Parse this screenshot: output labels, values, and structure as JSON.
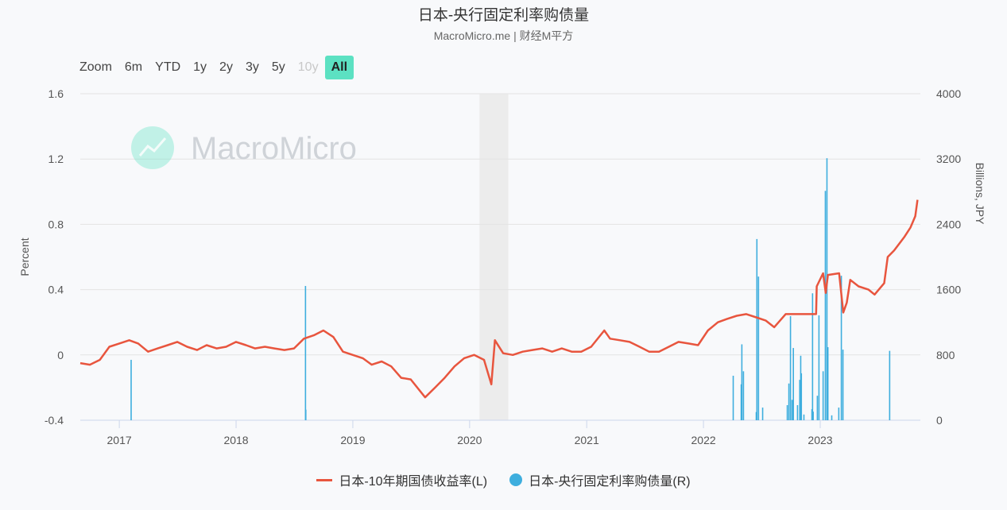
{
  "header": {
    "title": "日本-央行固定利率购债量",
    "subtitle": "MacroMicro.me | 财经M平方"
  },
  "range_selector": {
    "label": "Zoom",
    "buttons": [
      {
        "label": "6m",
        "state": "normal"
      },
      {
        "label": "YTD",
        "state": "normal"
      },
      {
        "label": "1y",
        "state": "normal"
      },
      {
        "label": "2y",
        "state": "normal"
      },
      {
        "label": "3y",
        "state": "normal"
      },
      {
        "label": "5y",
        "state": "normal"
      },
      {
        "label": "10y",
        "state": "disabled"
      },
      {
        "label": "All",
        "state": "active"
      }
    ]
  },
  "watermark": "MacroMicro",
  "colors": {
    "line": "#e8553e",
    "bars": "#3eaede",
    "accent": "#5ce1c2",
    "shade": "#ececec"
  },
  "chart_data": {
    "type": "line+bar",
    "title": "日本-央行固定利率购债量",
    "ylabel_left": "Percent",
    "ylabel_right": "Billions, JPY",
    "ylim_left": [
      -0.4,
      1.6
    ],
    "ylim_right": [
      0,
      4000
    ],
    "yticks_left": [
      "-0.4",
      "0",
      "0.4",
      "0.8",
      "1.2",
      "1.6"
    ],
    "yticks_right": [
      "0",
      "800",
      "1600",
      "2400",
      "3200",
      "4000"
    ],
    "xticks": [
      "2017",
      "2018",
      "2019",
      "2020",
      "2021",
      "2022",
      "2023"
    ],
    "xlim": [
      "2016-09-01",
      "2023-11-10"
    ],
    "grid": true,
    "legend_placement": "bottom",
    "shaded_period": [
      "2020-02-01",
      "2020-05-01"
    ],
    "series": [
      {
        "name": "日本-10年期国债收益率(L)",
        "axis": "left",
        "type": "line",
        "points": [
          [
            "2016-09-01",
            -0.05
          ],
          [
            "2016-10-01",
            -0.06
          ],
          [
            "2016-11-01",
            -0.03
          ],
          [
            "2016-12-01",
            0.05
          ],
          [
            "2017-01-01",
            0.07
          ],
          [
            "2017-02-01",
            0.09
          ],
          [
            "2017-03-01",
            0.07
          ],
          [
            "2017-04-01",
            0.02
          ],
          [
            "2017-05-01",
            0.04
          ],
          [
            "2017-06-01",
            0.06
          ],
          [
            "2017-07-01",
            0.08
          ],
          [
            "2017-08-01",
            0.05
          ],
          [
            "2017-09-01",
            0.03
          ],
          [
            "2017-10-01",
            0.06
          ],
          [
            "2017-11-01",
            0.04
          ],
          [
            "2017-12-01",
            0.05
          ],
          [
            "2018-01-01",
            0.08
          ],
          [
            "2018-02-01",
            0.06
          ],
          [
            "2018-03-01",
            0.04
          ],
          [
            "2018-04-01",
            0.05
          ],
          [
            "2018-05-01",
            0.04
          ],
          [
            "2018-06-01",
            0.03
          ],
          [
            "2018-07-01",
            0.04
          ],
          [
            "2018-08-01",
            0.1
          ],
          [
            "2018-09-01",
            0.12
          ],
          [
            "2018-10-01",
            0.15
          ],
          [
            "2018-11-01",
            0.11
          ],
          [
            "2018-12-01",
            0.02
          ],
          [
            "2019-01-01",
            0.0
          ],
          [
            "2019-02-01",
            -0.02
          ],
          [
            "2019-03-01",
            -0.06
          ],
          [
            "2019-04-01",
            -0.04
          ],
          [
            "2019-05-01",
            -0.07
          ],
          [
            "2019-06-01",
            -0.14
          ],
          [
            "2019-07-01",
            -0.15
          ],
          [
            "2019-08-15",
            -0.26
          ],
          [
            "2019-09-15",
            -0.2
          ],
          [
            "2019-10-15",
            -0.14
          ],
          [
            "2019-11-15",
            -0.07
          ],
          [
            "2019-12-15",
            -0.02
          ],
          [
            "2020-01-15",
            0.0
          ],
          [
            "2020-02-15",
            -0.03
          ],
          [
            "2020-03-09",
            -0.18
          ],
          [
            "2020-03-20",
            0.09
          ],
          [
            "2020-04-15",
            0.01
          ],
          [
            "2020-05-15",
            0.0
          ],
          [
            "2020-06-15",
            0.02
          ],
          [
            "2020-07-15",
            0.03
          ],
          [
            "2020-08-15",
            0.04
          ],
          [
            "2020-09-15",
            0.02
          ],
          [
            "2020-10-15",
            0.04
          ],
          [
            "2020-11-15",
            0.02
          ],
          [
            "2020-12-15",
            0.02
          ],
          [
            "2021-01-15",
            0.05
          ],
          [
            "2021-02-25",
            0.15
          ],
          [
            "2021-03-15",
            0.1
          ],
          [
            "2021-04-15",
            0.09
          ],
          [
            "2021-05-15",
            0.08
          ],
          [
            "2021-06-15",
            0.05
          ],
          [
            "2021-07-15",
            0.02
          ],
          [
            "2021-08-15",
            0.02
          ],
          [
            "2021-09-15",
            0.05
          ],
          [
            "2021-10-15",
            0.08
          ],
          [
            "2021-11-15",
            0.07
          ],
          [
            "2021-12-15",
            0.06
          ],
          [
            "2022-01-15",
            0.15
          ],
          [
            "2022-02-15",
            0.2
          ],
          [
            "2022-03-15",
            0.22
          ],
          [
            "2022-04-15",
            0.24
          ],
          [
            "2022-05-15",
            0.25
          ],
          [
            "2022-06-15",
            0.23
          ],
          [
            "2022-07-15",
            0.21
          ],
          [
            "2022-08-10",
            0.17
          ],
          [
            "2022-09-15",
            0.25
          ],
          [
            "2022-10-15",
            0.25
          ],
          [
            "2022-11-15",
            0.25
          ],
          [
            "2022-12-19",
            0.25
          ],
          [
            "2022-12-21",
            0.42
          ],
          [
            "2023-01-10",
            0.5
          ],
          [
            "2023-01-18",
            0.38
          ],
          [
            "2023-01-25",
            0.49
          ],
          [
            "2023-03-01",
            0.5
          ],
          [
            "2023-03-14",
            0.26
          ],
          [
            "2023-03-25",
            0.32
          ],
          [
            "2023-04-05",
            0.46
          ],
          [
            "2023-05-01",
            0.42
          ],
          [
            "2023-06-01",
            0.4
          ],
          [
            "2023-06-20",
            0.37
          ],
          [
            "2023-07-20",
            0.44
          ],
          [
            "2023-07-31",
            0.6
          ],
          [
            "2023-08-20",
            0.64
          ],
          [
            "2023-09-20",
            0.72
          ],
          [
            "2023-10-10",
            0.78
          ],
          [
            "2023-10-25",
            0.85
          ],
          [
            "2023-11-01",
            0.95
          ]
        ]
      },
      {
        "name": "日本-央行固定利率购债量(R)",
        "axis": "right",
        "type": "bar",
        "points": [
          [
            "2017-02-07",
            740
          ],
          [
            "2018-08-06",
            1645
          ],
          [
            "2018-08-07",
            130
          ],
          [
            "2022-04-04",
            545
          ],
          [
            "2022-04-29",
            440
          ],
          [
            "2022-05-01",
            930
          ],
          [
            "2022-05-06",
            600
          ],
          [
            "2022-06-15",
            100
          ],
          [
            "2022-06-17",
            2220
          ],
          [
            "2022-06-22",
            1760
          ],
          [
            "2022-07-05",
            155
          ],
          [
            "2022-09-20",
            185
          ],
          [
            "2022-09-25",
            450
          ],
          [
            "2022-09-30",
            1275
          ],
          [
            "2022-10-05",
            250
          ],
          [
            "2022-10-09",
            885
          ],
          [
            "2022-10-22",
            185
          ],
          [
            "2022-10-29",
            495
          ],
          [
            "2022-11-01",
            790
          ],
          [
            "2022-11-03",
            575
          ],
          [
            "2022-11-11",
            70
          ],
          [
            "2022-12-06",
            135
          ],
          [
            "2022-12-08",
            1555
          ],
          [
            "2022-12-10",
            105
          ],
          [
            "2022-12-23",
            300
          ],
          [
            "2022-12-28",
            1285
          ],
          [
            "2023-01-10",
            600
          ],
          [
            "2023-01-17",
            2810
          ],
          [
            "2023-01-22",
            3210
          ],
          [
            "2023-01-25",
            895
          ],
          [
            "2023-02-06",
            60
          ],
          [
            "2023-02-28",
            155
          ],
          [
            "2023-03-08",
            1770
          ],
          [
            "2023-03-13",
            865
          ],
          [
            "2023-08-06",
            850
          ]
        ]
      }
    ]
  }
}
